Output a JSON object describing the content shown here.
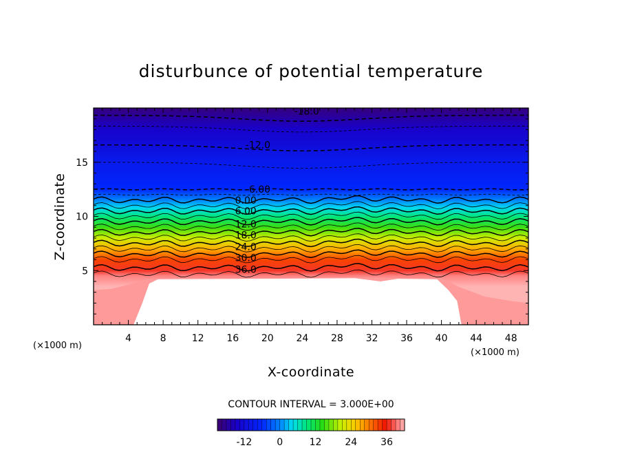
{
  "chart_data": {
    "type": "heatmap",
    "title": "disturbunce of potential temperature",
    "xlabel": "X-coordinate",
    "ylabel": "Z-coordinate",
    "x_unit": "(×1000 m)",
    "y_unit": "(×1000 m)",
    "xlim": [
      0,
      50
    ],
    "ylim": [
      0,
      20
    ],
    "x_ticks": [
      4,
      8,
      12,
      16,
      20,
      24,
      28,
      32,
      36,
      40,
      44,
      48
    ],
    "y_ticks": [
      5,
      10,
      15
    ],
    "contour_interval_label": "CONTOUR INTERVAL = 3.000E+00",
    "contour_labels": [
      {
        "text": "-18.0",
        "x": 24.5,
        "z": 19.7
      },
      {
        "text": "-12.0",
        "x": 18.9,
        "z": 16.6
      },
      {
        "text": "-6.00",
        "x": 18.9,
        "z": 12.5
      },
      {
        "text": "0.00",
        "x": 17.5,
        "z": 11.5
      },
      {
        "text": "6.00",
        "x": 17.5,
        "z": 10.5
      },
      {
        "text": "12.0",
        "x": 17.5,
        "z": 9.3
      },
      {
        "text": "18.0",
        "x": 17.5,
        "z": 8.3
      },
      {
        "text": "24.0",
        "x": 17.5,
        "z": 7.2
      },
      {
        "text": "30.0",
        "x": 17.5,
        "z": 6.2
      },
      {
        "text": "36.0",
        "x": 17.5,
        "z": 5.1
      }
    ],
    "colorbar": {
      "min": -21,
      "max": 42,
      "ticks": [
        -12,
        0,
        12,
        24,
        36
      ],
      "tick_labels": [
        "-12",
        "0",
        "12",
        "24",
        "36"
      ]
    },
    "field_profile": {
      "z": [
        0,
        2,
        3.5,
        4.5,
        5,
        6,
        7,
        8,
        9,
        10,
        10.8,
        11.5,
        12.5,
        14,
        15.5,
        16.6,
        18,
        19,
        20
      ],
      "value": [
        48,
        44,
        42,
        40,
        37,
        33,
        27,
        21,
        15,
        9,
        4,
        0,
        -6,
        -8,
        -9.5,
        -12,
        -14,
        -17,
        -20
      ]
    }
  }
}
